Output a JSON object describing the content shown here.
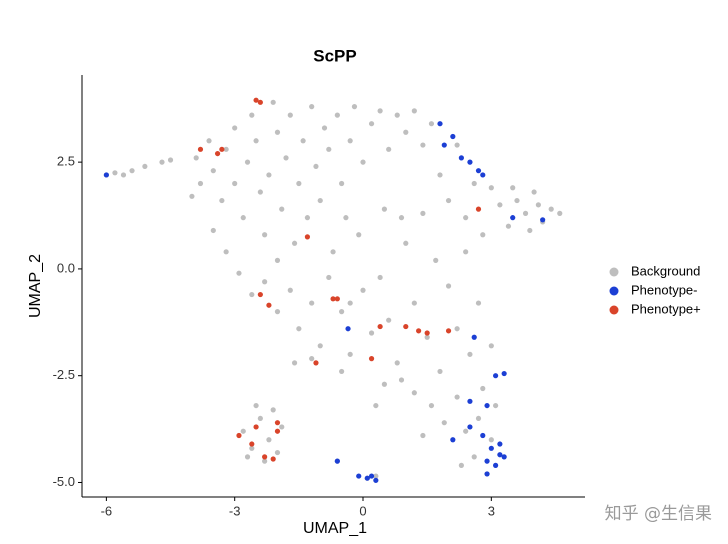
{
  "chart_data": {
    "type": "scatter",
    "title": "ScPP",
    "x_label": "UMAP_1",
    "y_label": "UMAP_2",
    "watermark": "知乎 @生信果",
    "xlim": [
      -6.57,
      5.19
    ],
    "ylim": [
      -5.34,
      4.54
    ],
    "xticks": [
      -6,
      -3,
      0,
      3
    ],
    "yticks": [
      2.5,
      {
        "value": 0,
        "label": "0.0"
      },
      -2.5,
      {
        "value": -5,
        "label": "-5.0"
      }
    ],
    "grid": false,
    "legend": "right",
    "series": [
      {
        "name": "Background",
        "color": "#bebebe",
        "x": [
          -6.0,
          -5.8,
          -5.6,
          -5.4,
          -5.1,
          -4.7,
          -4.5,
          -4.0,
          -3.8,
          -3.9,
          -3.6,
          -3.5,
          -3.3,
          -3.2,
          -3.0,
          -3.0,
          -2.8,
          -2.7,
          -2.6,
          -2.5,
          -2.4,
          -2.3,
          -2.2,
          -2.1,
          -2.0,
          -1.9,
          -1.8,
          -1.7,
          -1.6,
          -1.5,
          -1.4,
          -1.3,
          -1.2,
          -1.1,
          -1.0,
          -0.9,
          -0.8,
          -0.7,
          -0.6,
          -0.5,
          -0.4,
          -0.3,
          -0.2,
          0.0,
          0.2,
          0.4,
          0.6,
          0.8,
          1.0,
          1.2,
          1.4,
          1.6,
          1.8,
          2.0,
          2.2,
          2.4,
          2.6,
          2.8,
          3.0,
          3.2,
          3.4,
          3.6,
          3.8,
          4.0,
          4.2,
          4.4,
          4.6,
          3.9,
          4.1,
          3.5,
          -3.5,
          -3.2,
          -2.9,
          -2.6,
          -2.3,
          -2.0,
          -1.7,
          -1.5,
          -1.2,
          -1.0,
          -0.8,
          -0.5,
          -0.3,
          0.0,
          0.2,
          0.4,
          0.6,
          0.8,
          1.0,
          1.2,
          1.4,
          1.5,
          1.7,
          1.8,
          2.0,
          2.2,
          2.4,
          2.5,
          2.7,
          2.8,
          3.0,
          3.1,
          2.2,
          1.9,
          2.4,
          2.7,
          3.0,
          2.3,
          2.6,
          2.9,
          1.6,
          1.2,
          1.4,
          0.9,
          0.5,
          -0.5,
          -1.2,
          -0.1,
          0.5,
          0.9,
          -0.3,
          -2.0,
          -1.6,
          0.3,
          -2.8,
          -2.6,
          -2.4,
          -2.2,
          -2.0,
          -2.5,
          -2.3,
          -1.9,
          -2.7,
          -2.1,
          -0.6,
          0.1,
          0.3
        ],
        "values": [
          2.2,
          2.25,
          2.2,
          2.3,
          2.4,
          2.5,
          2.55,
          1.7,
          2.0,
          2.6,
          3.0,
          2.3,
          1.6,
          2.8,
          3.3,
          2.0,
          1.2,
          2.5,
          3.6,
          3.0,
          1.8,
          0.8,
          2.2,
          3.9,
          3.2,
          1.4,
          2.6,
          3.6,
          0.6,
          2.0,
          3.0,
          1.2,
          3.8,
          2.4,
          1.6,
          3.3,
          2.8,
          0.4,
          3.6,
          2.0,
          1.2,
          3.0,
          3.8,
          2.5,
          3.4,
          3.7,
          2.8,
          3.6,
          3.2,
          3.7,
          2.9,
          3.4,
          2.2,
          1.6,
          2.9,
          1.2,
          2.0,
          0.8,
          1.9,
          1.5,
          1.0,
          1.6,
          1.3,
          1.8,
          1.1,
          1.4,
          1.3,
          0.9,
          1.5,
          1.9,
          0.9,
          0.4,
          -0.1,
          -0.6,
          -0.3,
          -1.0,
          -0.5,
          -1.4,
          -0.8,
          -1.8,
          -0.2,
          -1.0,
          -2.0,
          -0.5,
          -1.5,
          -0.2,
          -1.2,
          -2.2,
          0.6,
          -0.8,
          1.3,
          -1.6,
          0.2,
          -2.4,
          -0.4,
          -1.4,
          0.4,
          -2.0,
          -0.8,
          -2.8,
          -1.8,
          -3.2,
          -3.0,
          -3.6,
          -3.8,
          -3.5,
          -4.0,
          -4.6,
          -4.4,
          -4.8,
          -3.2,
          -2.9,
          -3.9,
          -2.6,
          -2.7,
          -2.4,
          -2.1,
          0.8,
          1.4,
          1.2,
          -0.8,
          0.2,
          -2.2,
          -3.2,
          -3.8,
          -4.2,
          -3.5,
          -4.0,
          -4.3,
          -3.2,
          -4.5,
          -3.7,
          -4.4,
          -3.3,
          -4.5,
          -4.9,
          -4.85
        ]
      },
      {
        "name": "Phenotype-",
        "color": "#1c3fd4",
        "x": [
          1.8,
          2.1,
          1.9,
          2.3,
          2.5,
          2.7,
          2.8,
          3.5,
          4.2,
          -6.0,
          -0.35,
          2.6,
          3.1,
          3.3,
          2.5,
          2.9,
          2.5,
          2.1,
          2.8,
          3.0,
          3.2,
          3.2,
          3.3,
          2.9,
          3.1,
          2.9,
          -0.6,
          -0.1,
          0.1,
          0.3,
          0.2
        ],
        "values": [
          3.4,
          3.1,
          2.9,
          2.6,
          2.5,
          2.3,
          2.2,
          1.2,
          1.15,
          2.2,
          -1.4,
          -1.6,
          -2.5,
          -2.45,
          -3.1,
          -3.2,
          -3.7,
          -4.0,
          -3.9,
          -4.2,
          -4.1,
          -4.35,
          -4.4,
          -4.5,
          -4.6,
          -4.8,
          -4.5,
          -4.85,
          -4.9,
          -4.95,
          -4.85
        ]
      },
      {
        "name": "Phenotype+",
        "color": "#d9442a",
        "x": [
          -3.8,
          -3.4,
          -3.3,
          -2.4,
          -2.5,
          -1.3,
          -2.4,
          -2.2,
          -0.7,
          -0.6,
          -1.1,
          0.2,
          0.4,
          1.0,
          1.3,
          1.5,
          2.0,
          2.7,
          -2.9,
          -2.5,
          -2.0,
          -2.0,
          -2.1,
          -2.6,
          -2.3
        ],
        "values": [
          2.8,
          2.7,
          2.8,
          3.9,
          3.95,
          0.75,
          -0.6,
          -0.85,
          -0.7,
          -0.7,
          -2.2,
          -2.1,
          -1.35,
          -1.35,
          -1.45,
          -1.5,
          -1.45,
          1.4,
          -3.9,
          -3.7,
          -3.6,
          -3.8,
          -4.45,
          -4.1,
          -4.4
        ]
      }
    ]
  }
}
